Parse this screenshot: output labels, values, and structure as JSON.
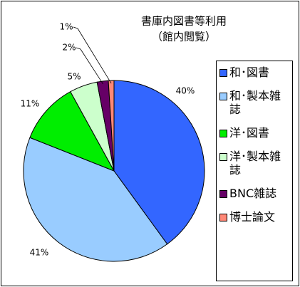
{
  "chart_data": {
    "type": "pie",
    "title": "書庫内図書等利用",
    "subtitle": "（館内閲覧）",
    "categories": [
      "和･図書",
      "和･製本雑誌",
      "洋･図書",
      "洋･製本雑誌",
      "BNC雑誌",
      "博士論文"
    ],
    "values": [
      40,
      41,
      11,
      5,
      2,
      1
    ],
    "value_labels": [
      "40%",
      "41%",
      "11%",
      "5%",
      "2%",
      "1%"
    ],
    "colors": [
      "#3366ff",
      "#99ccff",
      "#00ee00",
      "#ccffcc",
      "#660066",
      "#ff8877"
    ],
    "legend": "right"
  }
}
